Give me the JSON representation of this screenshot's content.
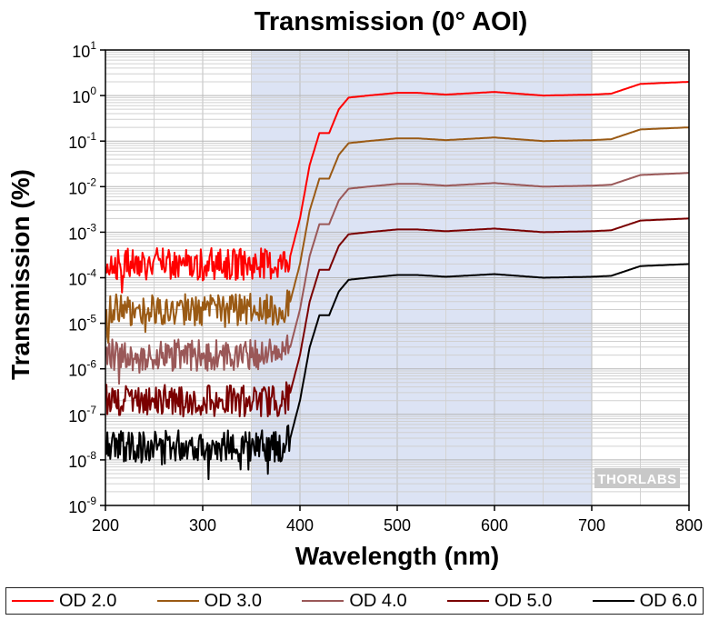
{
  "chart_data": {
    "type": "line",
    "title": "Transmission (0° AOI)",
    "xlabel": "Wavelength (nm)",
    "ylabel": "Transmission (%)",
    "xlim": [
      200,
      800
    ],
    "ylim": [
      1e-09,
      10
    ],
    "yscale": "log",
    "x_ticks": [
      200,
      300,
      400,
      500,
      600,
      700,
      800
    ],
    "y_tick_base": "10",
    "y_tick_exponents": [
      "1",
      "0",
      "-1",
      "-2",
      "-3",
      "-4",
      "-5",
      "-6",
      "-7",
      "-8",
      "-9"
    ],
    "grid": true,
    "highlight_band_nm": [
      350,
      700
    ],
    "highlight_color": "#dce3f4",
    "watermark": "THORLABS",
    "legend_position": "bottom",
    "series": [
      {
        "name": "OD 2.0",
        "color": "#ff0000",
        "x": [
          200,
          250,
          300,
          350,
          380,
          390,
          400,
          410,
          420,
          430,
          440,
          450,
          470,
          500,
          520,
          550,
          600,
          650,
          700,
          720,
          750,
          800
        ],
        "y": [
          0.0002,
          0.0002,
          0.0002,
          0.0002,
          0.0002,
          0.0003,
          0.002,
          0.03,
          0.15,
          0.15,
          0.5,
          0.9,
          1.0,
          1.15,
          1.15,
          1.05,
          1.2,
          1.0,
          1.05,
          1.1,
          1.8,
          2.0
        ]
      },
      {
        "name": "OD 3.0",
        "color": "#9a5a14",
        "x": [
          200,
          250,
          300,
          350,
          380,
          390,
          400,
          410,
          420,
          430,
          440,
          450,
          470,
          500,
          520,
          550,
          600,
          650,
          700,
          720,
          750,
          800
        ],
        "y": [
          2e-05,
          2e-05,
          2e-05,
          2e-05,
          2e-05,
          3e-05,
          0.0002,
          0.003,
          0.015,
          0.015,
          0.05,
          0.09,
          0.1,
          0.115,
          0.115,
          0.105,
          0.12,
          0.1,
          0.105,
          0.11,
          0.18,
          0.2
        ]
      },
      {
        "name": "OD 4.0",
        "color": "#9a5858",
        "x": [
          200,
          250,
          300,
          350,
          380,
          390,
          400,
          410,
          420,
          430,
          440,
          450,
          470,
          500,
          520,
          550,
          600,
          650,
          700,
          720,
          750,
          800
        ],
        "y": [
          2e-06,
          2e-06,
          2e-06,
          2e-06,
          2e-06,
          3e-06,
          2e-05,
          0.0003,
          0.0015,
          0.0015,
          0.005,
          0.009,
          0.01,
          0.0115,
          0.0115,
          0.0105,
          0.012,
          0.01,
          0.0105,
          0.011,
          0.018,
          0.02
        ]
      },
      {
        "name": "OD 5.0",
        "color": "#7a0000",
        "x": [
          200,
          250,
          300,
          350,
          380,
          390,
          400,
          410,
          420,
          430,
          440,
          450,
          470,
          500,
          520,
          550,
          600,
          650,
          700,
          720,
          750,
          800
        ],
        "y": [
          2e-07,
          2e-07,
          2e-07,
          2e-07,
          2e-07,
          3e-07,
          2e-06,
          3e-05,
          0.00015,
          0.00015,
          0.0005,
          0.0009,
          0.001,
          0.00115,
          0.00115,
          0.00105,
          0.0012,
          0.001,
          0.00105,
          0.0011,
          0.0018,
          0.002
        ]
      },
      {
        "name": "OD 6.0",
        "color": "#000000",
        "x": [
          200,
          250,
          300,
          350,
          380,
          390,
          400,
          410,
          420,
          430,
          440,
          450,
          470,
          500,
          520,
          550,
          600,
          650,
          700,
          720,
          750,
          800
        ],
        "y": [
          2e-08,
          2e-08,
          2e-08,
          2e-08,
          2e-08,
          3e-08,
          2e-07,
          3e-06,
          1.5e-05,
          1.5e-05,
          5e-05,
          9e-05,
          0.0001,
          0.000115,
          0.000115,
          0.000105,
          0.00012,
          0.0001,
          0.000105,
          0.00011,
          0.00018,
          0.0002
        ]
      }
    ]
  }
}
